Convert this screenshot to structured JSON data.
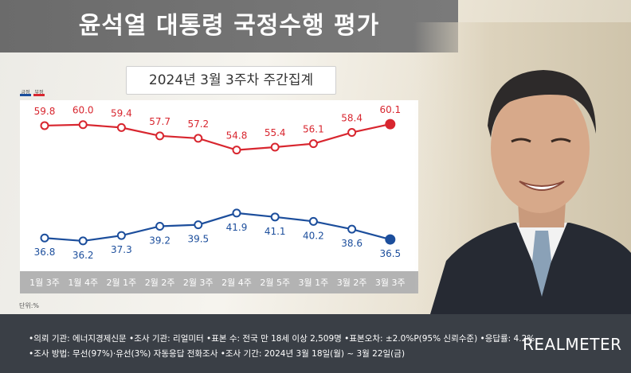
{
  "header": {
    "title": "윤석열 대통령 국정수행 평가",
    "subtitle": "2024년 3월 3주차 주간집계"
  },
  "legend": {
    "positive_label": "긍정",
    "negative_label": "부정"
  },
  "unit_label": "단위:%",
  "colors": {
    "positive": "#1c4e9c",
    "negative": "#d8262f",
    "title_bar": "#747474",
    "footer": "#3a3f46"
  },
  "chart_data": {
    "type": "line",
    "categories": [
      "1월 3주",
      "1월 4주",
      "2월 1주",
      "2월 2주",
      "2월 3주",
      "2월 4주",
      "2월 5주",
      "3월 1주",
      "3월 2주",
      "3월 3주"
    ],
    "series": [
      {
        "name": "부정",
        "color": "#d8262f",
        "values": [
          59.8,
          60.0,
          59.4,
          57.7,
          57.2,
          54.8,
          55.4,
          56.1,
          58.4,
          60.1
        ]
      },
      {
        "name": "긍정",
        "color": "#1c4e9c",
        "values": [
          36.8,
          36.2,
          37.3,
          39.2,
          39.5,
          41.9,
          41.1,
          40.2,
          38.6,
          36.5
        ]
      }
    ],
    "title": "윤석열 대통령 국정수행 평가",
    "subtitle": "2024년 3월 3주차 주간집계",
    "xlabel": "",
    "ylabel": "",
    "ylim": [
      30,
      65
    ],
    "grid": false,
    "legend_position": "top-left",
    "unit": "단위:%"
  },
  "footer": {
    "line1": "•의뢰 기관: 에너지경제신문 •조사 기관: 리얼미터 •표본 수: 전국 만 18세 이상 2,509명 •표본오차: ±2.0%P(95% 신뢰수준) •응답률: 4.2%",
    "line2": "•조사 방법: 무선(97%)·유선(3%) 자동응답 전화조사 •조사 기간: 2024년 3월 18일(월) ~ 3월 22일(금)",
    "brand": "REALMETER"
  }
}
